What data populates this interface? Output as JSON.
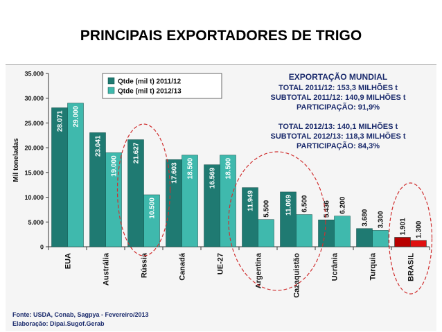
{
  "slide_title": "PRINCIPAIS EXPORTADORES DE TRIGO",
  "chart_data": {
    "type": "bar",
    "ylabel": "Mil toneladas",
    "ylim": [
      0,
      35000
    ],
    "yticks": [
      "0",
      "5.000",
      "10.000",
      "15.000",
      "20.000",
      "25.000",
      "30.000",
      "35.000"
    ],
    "ytick_values": [
      0,
      5000,
      10000,
      15000,
      20000,
      25000,
      30000,
      35000
    ],
    "categories": [
      "EUA",
      "Austrália",
      "Rússia",
      "Canadá",
      "UE-27",
      "Argentina",
      "Cazaquistão",
      "Ucrânia",
      "Turquia",
      "BRASIL"
    ],
    "series": [
      {
        "name": "Qtde (mil t) 2011/12",
        "values": [
          28071,
          23041,
          21627,
          17603,
          16569,
          11949,
          11069,
          5436,
          3680,
          1901
        ],
        "labels": [
          "28.071",
          "23.041",
          "21.627",
          "17.603",
          "16.569",
          "11.949",
          "11.069",
          "5.436",
          "3.680",
          "1.901"
        ],
        "color": "#1f7a72"
      },
      {
        "name": "Qtde (mil t) 2012/13",
        "values": [
          29000,
          19000,
          10500,
          18500,
          18500,
          5500,
          6500,
          6200,
          3300,
          1300
        ],
        "labels": [
          "29.000",
          "19.000",
          "10.500",
          "18.500",
          "18.500",
          "5.500",
          "6.500",
          "6.200",
          "3.300",
          "1.300"
        ],
        "color": "#3fb9ad"
      }
    ],
    "highlight_category": "BRASIL",
    "highlight_colors": [
      "#b80000",
      "#e01010"
    ],
    "circled_categories": [
      "Rússia",
      "Argentina",
      "Cazaquistão",
      "BRASIL"
    ],
    "legend_position": "top-left",
    "grid": false,
    "annotation_lines": [
      "EXPORTAÇÃO MUNDIAL",
      "TOTAL 2011/12: 153,3 MILHÕES t",
      "SUBTOTAL 2011/12: 140,9 MILHÕES t",
      "PARTICIPAÇÃO: 91,9%",
      "TOTAL 2012/13: 140,1 MILHÕES t",
      "SUBTOTAL 2012/13: 118,3 MILHÕES t",
      "PARTICIPAÇÃO: 84,3%"
    ]
  },
  "footer": {
    "source": "Fonte: USDA, Conab, Sagpya - Fevereiro/2013",
    "elaboration": "Elaboração: Dipai.Sugof.Gerab"
  }
}
